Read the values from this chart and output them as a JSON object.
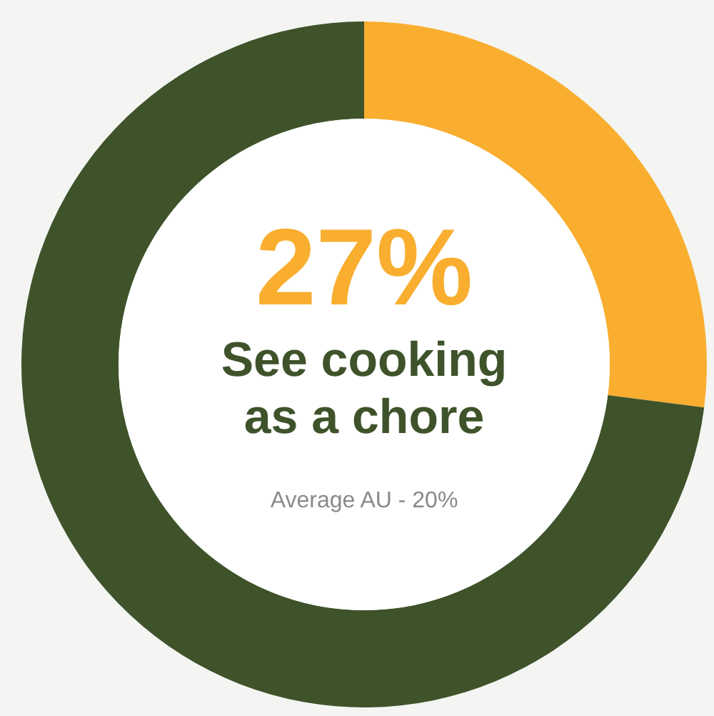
{
  "chart_data": {
    "type": "donut",
    "title": "See cooking as a chore",
    "categories": [
      null,
      null
    ],
    "values": [
      27,
      73
    ],
    "colors": [
      "#f9ae30",
      "#3f532b"
    ],
    "value_labels": [
      "27%",
      null
    ],
    "annotations": [
      "Average AU - 20%"
    ]
  }
}
